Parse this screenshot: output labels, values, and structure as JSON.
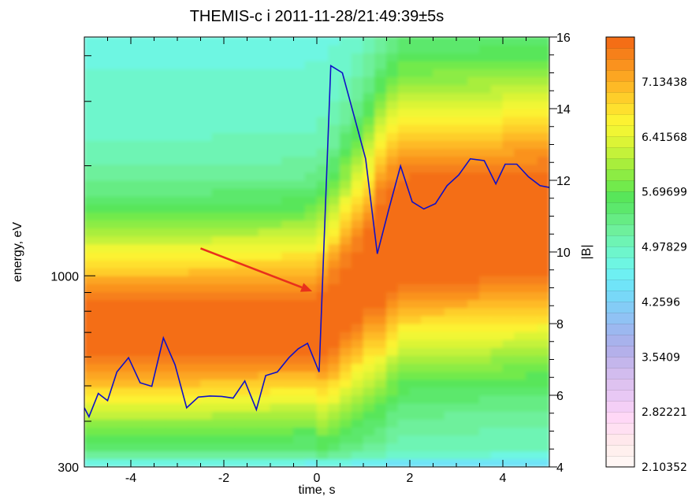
{
  "chart_data": {
    "type": "heatmap",
    "title": "THEMIS-c i 2011-11-28/21:49:39±5s",
    "xlabel": "time, s",
    "ylabel": "energy, eV",
    "y2label": "|B|",
    "xlim": [
      -5,
      5
    ],
    "x_ticks": [
      "-4",
      "-2",
      "0",
      "2",
      "4"
    ],
    "y_scale": "log",
    "ylim": [
      300,
      4500
    ],
    "y_tick_labels": [
      "300",
      "1000"
    ],
    "y2lim": [
      4,
      16
    ],
    "y2_ticks": [
      "4",
      "6",
      "8",
      "10",
      "12",
      "14",
      "16"
    ],
    "colorbar": {
      "labels": [
        "2.10352",
        "2.82221",
        "3.5409",
        "4.2596",
        "4.97829",
        "5.69699",
        "6.41568",
        "7.13438"
      ]
    },
    "heatmap_description": "Ion energy flux spectrogram; peak flux near 700 eV before t=0, shifting to ~1100-1800 eV after t=1.5 s",
    "series": [
      {
        "name": "|B|",
        "color": "#1010c8",
        "x": [
          -5.0,
          -4.9,
          -4.7,
          -4.5,
          -4.3,
          -4.05,
          -3.8,
          -3.55,
          -3.3,
          -3.05,
          -2.8,
          -2.55,
          -2.3,
          -2.05,
          -1.8,
          -1.55,
          -1.3,
          -1.1,
          -0.85,
          -0.6,
          -0.4,
          -0.2,
          0.05,
          0.3,
          0.55,
          0.8,
          1.05,
          1.3,
          1.55,
          1.8,
          2.05,
          2.3,
          2.55,
          2.8,
          3.05,
          3.3,
          3.6,
          3.85,
          4.05,
          4.3,
          4.55,
          4.8,
          5.0
        ],
        "y": [
          5.65,
          5.4,
          6.05,
          5.85,
          6.65,
          7.05,
          6.35,
          6.25,
          7.6,
          6.85,
          5.65,
          5.95,
          5.98,
          5.97,
          5.92,
          6.4,
          5.6,
          6.55,
          6.65,
          7.05,
          7.3,
          7.45,
          6.65,
          15.2,
          15.0,
          13.8,
          12.6,
          9.95,
          11.2,
          12.4,
          11.4,
          11.2,
          11.35,
          11.85,
          12.15,
          12.6,
          12.55,
          11.9,
          12.45,
          12.45,
          12.1,
          11.85,
          11.8
        ]
      }
    ],
    "annotations": [
      {
        "type": "arrow",
        "color": "#e8301c",
        "from": [
          -2.5,
          10.1
        ],
        "to": [
          -0.1,
          8.9
        ]
      }
    ]
  }
}
